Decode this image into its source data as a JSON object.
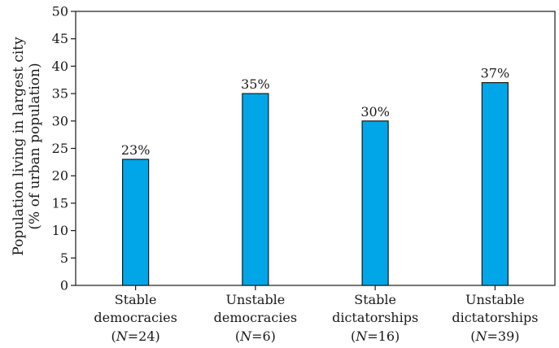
{
  "chart_data": {
    "type": "bar",
    "ylabel_line1": "Population living in largest city",
    "ylabel_line2": "(% of urban population)",
    "ylim": [
      0,
      50
    ],
    "yticks": [
      0,
      5,
      10,
      15,
      20,
      25,
      30,
      35,
      40,
      45,
      50
    ],
    "grid": false,
    "bar_color": "#00a6e8",
    "categories": [
      {
        "line1": "Stable",
        "line2": "democracies",
        "n": "24"
      },
      {
        "line1": "Unstable",
        "line2": "democracies",
        "n": "6"
      },
      {
        "line1": "Stable",
        "line2": "dictatorships",
        "n": "16"
      },
      {
        "line1": "Unstable",
        "line2": "dictatorships",
        "n": "39"
      }
    ],
    "values": [
      23,
      35,
      30,
      37
    ],
    "data_labels": [
      "23%",
      "35%",
      "30%",
      "37%"
    ]
  }
}
